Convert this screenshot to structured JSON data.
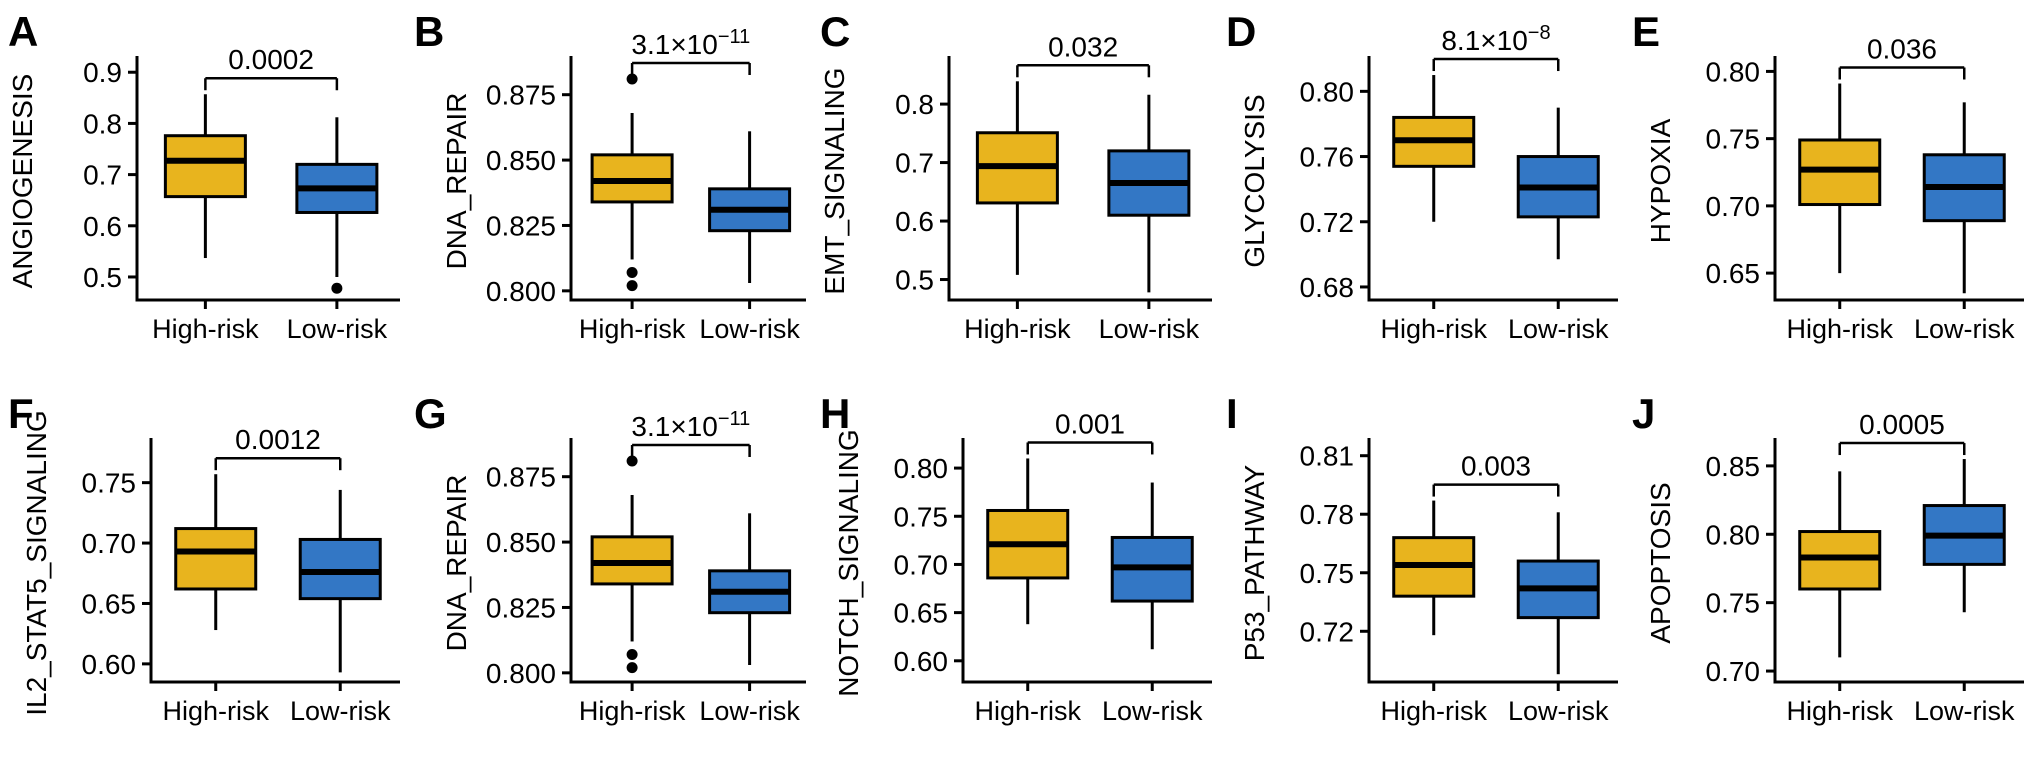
{
  "figure": {
    "groups": [
      "High-risk",
      "Low-risk"
    ],
    "colors": {
      "high_risk": "#E8B41E",
      "low_risk": "#3377C5",
      "stroke": "#000000"
    }
  },
  "chart_data": [
    {
      "type": "box",
      "panel": "A",
      "ylabel": "ANGIOGENESIS",
      "p": {
        "text": "0.0002",
        "sup": ""
      },
      "categories": [
        "High-risk",
        "Low-risk"
      ],
      "yticks": [
        "0.5",
        "0.6",
        "0.7",
        "0.8",
        "0.9"
      ],
      "ylim": [
        0.455,
        0.92
      ],
      "series": [
        {
          "name": "High-risk",
          "color": "#E8B41E",
          "whisker_low": 0.537,
          "q1": 0.657,
          "median": 0.727,
          "q3": 0.776,
          "whisker_high": 0.857,
          "outliers": []
        },
        {
          "name": "Low-risk",
          "color": "#3377C5",
          "whisker_low": 0.5,
          "q1": 0.626,
          "median": 0.673,
          "q3": 0.72,
          "whisker_high": 0.812,
          "outliers": [
            0.478
          ]
        }
      ]
    },
    {
      "type": "box",
      "panel": "B",
      "ylabel": "DNA_REPAIR",
      "p": {
        "text": "3.1×10",
        "sup": "−11"
      },
      "categories": [
        "High-risk",
        "Low-risk"
      ],
      "yticks": [
        "0.800",
        "0.825",
        "0.850",
        "0.875"
      ],
      "ylim": [
        0.7965,
        0.8875
      ],
      "series": [
        {
          "name": "High-risk",
          "color": "#E8B41E",
          "whisker_low": 0.812,
          "q1": 0.834,
          "median": 0.842,
          "q3": 0.852,
          "whisker_high": 0.868,
          "outliers": [
            0.881,
            0.807,
            0.802
          ]
        },
        {
          "name": "Low-risk",
          "color": "#3377C5",
          "whisker_low": 0.803,
          "q1": 0.823,
          "median": 0.831,
          "q3": 0.839,
          "whisker_high": 0.861,
          "outliers": []
        }
      ]
    },
    {
      "type": "box",
      "panel": "C",
      "ylabel": "EMT_SIGNALING",
      "p": {
        "text": "0.032",
        "sup": ""
      },
      "categories": [
        "High-risk",
        "Low-risk"
      ],
      "yticks": [
        "0.5",
        "0.6",
        "0.7",
        "0.8"
      ],
      "ylim": [
        0.465,
        0.872
      ],
      "series": [
        {
          "name": "High-risk",
          "color": "#E8B41E",
          "whisker_low": 0.508,
          "q1": 0.631,
          "median": 0.694,
          "q3": 0.751,
          "whisker_high": 0.839,
          "outliers": []
        },
        {
          "name": "Low-risk",
          "color": "#3377C5",
          "whisker_low": 0.478,
          "q1": 0.61,
          "median": 0.665,
          "q3": 0.72,
          "whisker_high": 0.816,
          "outliers": []
        }
      ]
    },
    {
      "type": "box",
      "panel": "D",
      "ylabel": "GLYCOLYSIS",
      "p": {
        "text": "8.1×10",
        "sup": "−8"
      },
      "categories": [
        "High-risk",
        "Low-risk"
      ],
      "yticks": [
        "0.68",
        "0.72",
        "0.76",
        "0.80"
      ],
      "ylim": [
        0.672,
        0.818
      ],
      "series": [
        {
          "name": "High-risk",
          "color": "#E8B41E",
          "whisker_low": 0.72,
          "q1": 0.754,
          "median": 0.77,
          "q3": 0.784,
          "whisker_high": 0.81,
          "outliers": []
        },
        {
          "name": "Low-risk",
          "color": "#3377C5",
          "whisker_low": 0.697,
          "q1": 0.723,
          "median": 0.741,
          "q3": 0.76,
          "whisker_high": 0.79,
          "outliers": []
        }
      ]
    },
    {
      "type": "box",
      "panel": "E",
      "ylabel": "HYPOXIA",
      "p": {
        "text": "0.036",
        "sup": ""
      },
      "categories": [
        "High-risk",
        "Low-risk"
      ],
      "yticks": [
        "0.65",
        "0.70",
        "0.75",
        "0.80"
      ],
      "ylim": [
        0.63,
        0.807
      ],
      "series": [
        {
          "name": "High-risk",
          "color": "#E8B41E",
          "whisker_low": 0.65,
          "q1": 0.701,
          "median": 0.727,
          "q3": 0.749,
          "whisker_high": 0.791,
          "outliers": []
        },
        {
          "name": "Low-risk",
          "color": "#3377C5",
          "whisker_low": 0.635,
          "q1": 0.689,
          "median": 0.714,
          "q3": 0.738,
          "whisker_high": 0.777,
          "outliers": []
        }
      ]
    },
    {
      "type": "box",
      "panel": "F",
      "ylabel": "IL2_STAT5_SIGNALING",
      "p": {
        "text": "0.0012",
        "sup": ""
      },
      "categories": [
        "High-risk",
        "Low-risk"
      ],
      "yticks": [
        "0.60",
        "0.65",
        "0.70",
        "0.75"
      ],
      "ylim": [
        0.585,
        0.782
      ],
      "series": [
        {
          "name": "High-risk",
          "color": "#E8B41E",
          "whisker_low": 0.628,
          "q1": 0.662,
          "median": 0.693,
          "q3": 0.712,
          "whisker_high": 0.757,
          "outliers": []
        },
        {
          "name": "Low-risk",
          "color": "#3377C5",
          "whisker_low": 0.593,
          "q1": 0.654,
          "median": 0.676,
          "q3": 0.703,
          "whisker_high": 0.744,
          "outliers": []
        }
      ]
    },
    {
      "type": "box",
      "panel": "G",
      "ylabel": "DNA_REPAIR",
      "p": {
        "text": "3.1×10",
        "sup": "−11"
      },
      "categories": [
        "High-risk",
        "Low-risk"
      ],
      "yticks": [
        "0.800",
        "0.825",
        "0.850",
        "0.875"
      ],
      "ylim": [
        0.7965,
        0.8875
      ],
      "series": [
        {
          "name": "High-risk",
          "color": "#E8B41E",
          "whisker_low": 0.812,
          "q1": 0.834,
          "median": 0.842,
          "q3": 0.852,
          "whisker_high": 0.868,
          "outliers": [
            0.881,
            0.807,
            0.802
          ]
        },
        {
          "name": "Low-risk",
          "color": "#3377C5",
          "whisker_low": 0.803,
          "q1": 0.823,
          "median": 0.831,
          "q3": 0.839,
          "whisker_high": 0.861,
          "outliers": []
        }
      ]
    },
    {
      "type": "box",
      "panel": "H",
      "ylabel": "NOTCH_SIGNALING",
      "p": {
        "text": "0.001",
        "sup": ""
      },
      "categories": [
        "High-risk",
        "Low-risk"
      ],
      "yticks": [
        "0.60",
        "0.65",
        "0.70",
        "0.75",
        "0.80"
      ],
      "ylim": [
        0.578,
        0.825
      ],
      "series": [
        {
          "name": "High-risk",
          "color": "#E8B41E",
          "whisker_low": 0.638,
          "q1": 0.686,
          "median": 0.721,
          "q3": 0.756,
          "whisker_high": 0.81,
          "outliers": []
        },
        {
          "name": "Low-risk",
          "color": "#3377C5",
          "whisker_low": 0.612,
          "q1": 0.662,
          "median": 0.697,
          "q3": 0.728,
          "whisker_high": 0.785,
          "outliers": []
        }
      ]
    },
    {
      "type": "box",
      "panel": "I",
      "ylabel": "P53_PATHWAY",
      "p": {
        "text": "0.003",
        "sup": ""
      },
      "categories": [
        "High-risk",
        "Low-risk"
      ],
      "yticks": [
        "0.72",
        "0.75",
        "0.78",
        "0.81"
      ],
      "ylim": [
        0.694,
        0.816
      ],
      "series": [
        {
          "name": "High-risk",
          "color": "#E8B41E",
          "whisker_low": 0.718,
          "q1": 0.738,
          "median": 0.754,
          "q3": 0.768,
          "whisker_high": 0.787,
          "outliers": []
        },
        {
          "name": "Low-risk",
          "color": "#3377C5",
          "whisker_low": 0.698,
          "q1": 0.727,
          "median": 0.742,
          "q3": 0.756,
          "whisker_high": 0.781,
          "outliers": []
        }
      ]
    },
    {
      "type": "box",
      "panel": "J",
      "ylabel": "APOPTOSIS",
      "p": {
        "text": "0.0005",
        "sup": ""
      },
      "categories": [
        "High-risk",
        "Low-risk"
      ],
      "yticks": [
        "0.70",
        "0.75",
        "0.80",
        "0.85"
      ],
      "ylim": [
        0.692,
        0.866
      ],
      "series": [
        {
          "name": "High-risk",
          "color": "#E8B41E",
          "whisker_low": 0.71,
          "q1": 0.76,
          "median": 0.783,
          "q3": 0.802,
          "whisker_high": 0.846,
          "outliers": []
        },
        {
          "name": "Low-risk",
          "color": "#3377C5",
          "whisker_low": 0.743,
          "q1": 0.778,
          "median": 0.799,
          "q3": 0.821,
          "whisker_high": 0.855,
          "outliers": []
        }
      ]
    }
  ]
}
